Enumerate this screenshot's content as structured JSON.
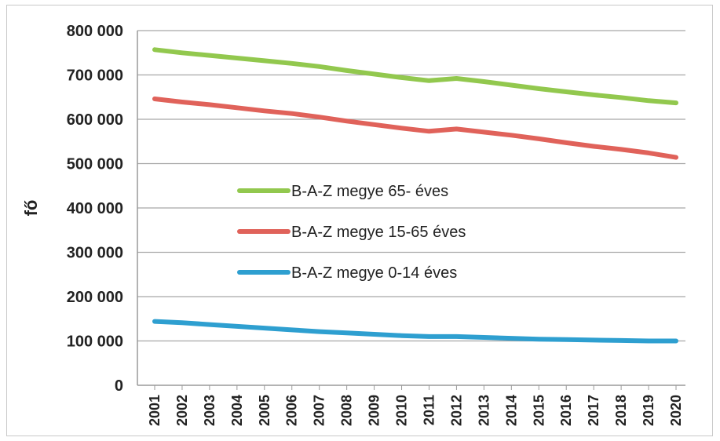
{
  "chart_data": {
    "type": "line",
    "title": "",
    "xlabel": "",
    "ylabel": "fő",
    "x": [
      "2001",
      "2002",
      "2003",
      "2004",
      "2005",
      "2006",
      "2007",
      "2008",
      "2009",
      "2010",
      "2011",
      "2012",
      "2013",
      "2014",
      "2015",
      "2016",
      "2017",
      "2018",
      "2019",
      "2020"
    ],
    "ylim": [
      0,
      800000
    ],
    "yticks": [
      0,
      100000,
      200000,
      300000,
      400000,
      500000,
      600000,
      700000,
      800000
    ],
    "ytick_labels": [
      "0",
      "100 000",
      "200 000",
      "300 000",
      "400 000",
      "500 000",
      "600 000",
      "700 000",
      "800 000"
    ],
    "grid": "horizontal",
    "legend_position": "center",
    "series": [
      {
        "name": "B-A-Z megye 65- éves",
        "color": "#92C84E",
        "values": [
          757000,
          750000,
          744000,
          738000,
          732000,
          726000,
          719000,
          710000,
          702000,
          694000,
          687000,
          692000,
          685000,
          677000,
          669000,
          662000,
          655000,
          649000,
          642000,
          637000
        ]
      },
      {
        "name": "B-A-Z megye 15-65 éves",
        "color": "#E0625A",
        "values": [
          646000,
          639000,
          633000,
          626000,
          619000,
          613000,
          605000,
          596000,
          588000,
          580000,
          573000,
          578000,
          571000,
          564000,
          556000,
          547000,
          539000,
          532000,
          524000,
          514000
        ]
      },
      {
        "name": "B-A-Z megye 0-14 éves",
        "color": "#2E9FD0",
        "values": [
          144000,
          141000,
          137000,
          133000,
          129000,
          125000,
          121000,
          118000,
          115000,
          112000,
          110000,
          110000,
          108000,
          106000,
          104000,
          103000,
          102000,
          101000,
          100000,
          100000
        ]
      }
    ]
  }
}
